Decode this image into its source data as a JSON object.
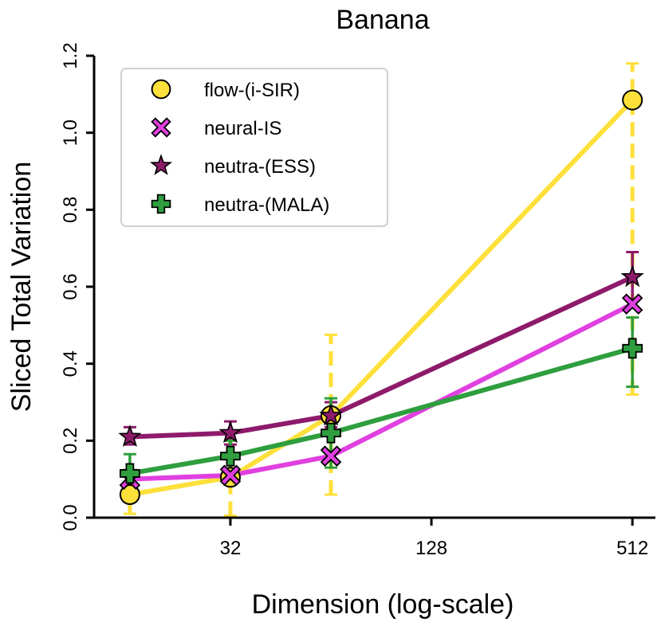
{
  "chart_data": {
    "type": "line",
    "title": "Banana",
    "xlabel": "Dimension (log-scale)",
    "ylabel": "Sliced Total Variation",
    "x_scale": "log2",
    "xlim": [
      12.5,
      600
    ],
    "ylim": [
      0.0,
      1.2
    ],
    "x": [
      16,
      32,
      64,
      512
    ],
    "x_ticks": [
      32,
      128,
      512
    ],
    "x_tick_labels": [
      "32",
      "128",
      "512"
    ],
    "y_ticks": [
      0.0,
      0.2,
      0.4,
      0.6,
      0.8,
      1.0,
      1.2
    ],
    "y_tick_labels": [
      "0.0",
      "0.2",
      "0.4",
      "0.6",
      "0.8",
      "1.0",
      "1.2"
    ],
    "legend_position": "top-left",
    "series": [
      {
        "name": "flow-(i-SIR)",
        "color": "#FDE03A",
        "marker": "circle",
        "values": [
          0.06,
          0.105,
          0.265,
          1.085
        ],
        "err_low": [
          0.01,
          0.005,
          0.06,
          0.32
        ],
        "err_high": [
          0.12,
          0.2,
          0.475,
          1.18
        ],
        "dashed_error": true
      },
      {
        "name": "neural-IS",
        "color": "#E040E0",
        "marker": "x",
        "values": [
          0.1,
          0.11,
          0.16,
          0.555
        ],
        "err_low": [
          0.09,
          0.1,
          0.15,
          0.545
        ],
        "err_high": [
          0.11,
          0.12,
          0.17,
          0.565
        ],
        "dashed_error": false
      },
      {
        "name": "neutra-(ESS)",
        "color": "#8E1A6B",
        "marker": "star",
        "values": [
          0.21,
          0.22,
          0.265,
          0.625
        ],
        "err_low": [
          0.19,
          0.19,
          0.235,
          0.565
        ],
        "err_high": [
          0.235,
          0.25,
          0.3,
          0.69
        ],
        "dashed_error": false
      },
      {
        "name": "neutra-(MALA)",
        "color": "#2E9E3E",
        "marker": "plus",
        "values": [
          0.115,
          0.16,
          0.22,
          0.44
        ],
        "err_low": [
          0.07,
          0.12,
          0.13,
          0.34
        ],
        "err_high": [
          0.165,
          0.2,
          0.31,
          0.52
        ],
        "dashed_error": false
      }
    ]
  }
}
